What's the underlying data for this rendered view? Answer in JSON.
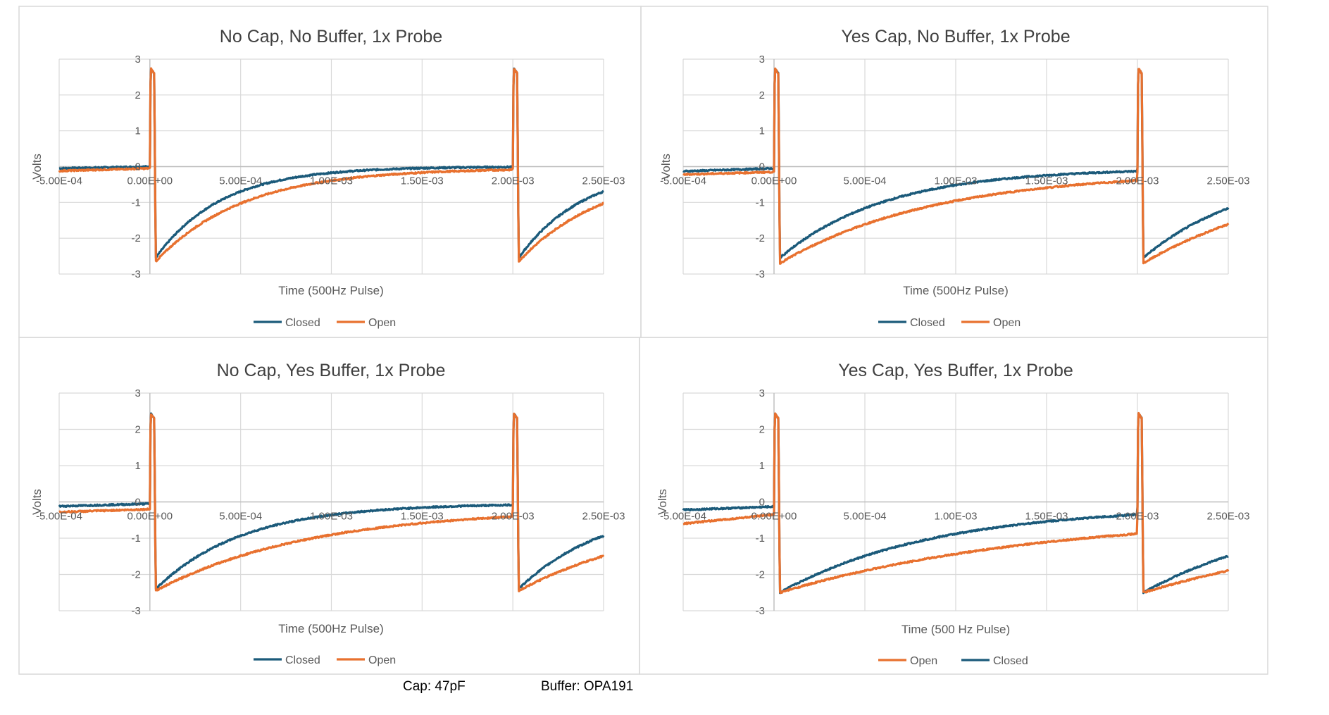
{
  "footnotes": {
    "cap": "Cap: 47pF",
    "buffer": "Buffer: OPA191"
  },
  "colors": {
    "closed": "#1B5A7A",
    "open": "#E8712F",
    "grid": "#D9D9D9",
    "text": "#595959",
    "title": "#404040",
    "border": "#D9D9D9"
  },
  "chart_data": [
    {
      "type": "line",
      "title": "No Cap, No Buffer, 1x Probe",
      "xlabel": "Time (500Hz Pulse)",
      "ylabel": "Volts",
      "xlim": [
        -0.0005,
        0.0025
      ],
      "ylim": [
        -3,
        3
      ],
      "xticks": [
        "-5.00E-04",
        "0.00E+00",
        "5.00E-04",
        "1.00E-03",
        "1.50E-03",
        "2.00E-03",
        "2.50E-03"
      ],
      "yticks": [
        "3",
        "2",
        "1",
        "0",
        "-1",
        "-2",
        "-3"
      ],
      "grid": true,
      "legend": "bottom",
      "legend_order": [
        "Closed",
        "Open"
      ],
      "series": [
        {
          "name": "Closed",
          "color": "#1B5A7A",
          "pre_low": -0.05,
          "pre_high": 0.0,
          "spike": 2.75,
          "neg_peak": -2.55,
          "tau": 0.00036
        },
        {
          "name": "Open",
          "color": "#E8712F",
          "pre_low": -0.12,
          "pre_high": -0.05,
          "spike": 2.75,
          "neg_peak": -2.65,
          "tau": 0.00048
        }
      ]
    },
    {
      "type": "line",
      "title": "Yes Cap, No Buffer, 1x Probe",
      "xlabel": "Time (500Hz Pulse)",
      "ylabel": "Volts",
      "xlim": [
        -0.0005,
        0.0025
      ],
      "ylim": [
        -3,
        3
      ],
      "xticks": [
        "-5.00E-04",
        "0.00E+00",
        "5.00E-04",
        "1.00E-03",
        "1.50E-03",
        "2.00E-03",
        "2.50E-03"
      ],
      "yticks": [
        "3",
        "2",
        "1",
        "0",
        "-1",
        "-2",
        "-3"
      ],
      "grid": true,
      "legend": "bottom",
      "legend_order": [
        "Closed",
        "Open"
      ],
      "series": [
        {
          "name": "Closed",
          "color": "#1B5A7A",
          "pre_low": -0.13,
          "pre_high": -0.05,
          "spike": 2.75,
          "neg_peak": -2.55,
          "tau": 0.00058
        },
        {
          "name": "Open",
          "color": "#E8712F",
          "pre_low": -0.22,
          "pre_high": -0.15,
          "spike": 2.75,
          "neg_peak": -2.7,
          "tau": 0.00085
        }
      ]
    },
    {
      "type": "line",
      "title": "No Cap, Yes Buffer, 1x Probe",
      "xlabel": "Time (500Hz Pulse)",
      "ylabel": "Volts",
      "xlim": [
        -0.0005,
        0.0025
      ],
      "ylim": [
        -3,
        3
      ],
      "xticks": [
        "-5.00E-04",
        "0.00E+00",
        "5.00E-04",
        "1.00E-03",
        "1.50E-03",
        "2.00E-03",
        "2.50E-03"
      ],
      "yticks": [
        "3",
        "2",
        "1",
        "0",
        "-1",
        "-2",
        "-3"
      ],
      "grid": true,
      "legend": "bottom",
      "legend_order": [
        "Closed",
        "Open"
      ],
      "series": [
        {
          "name": "Closed",
          "color": "#1B5A7A",
          "pre_low": -0.12,
          "pre_high": -0.05,
          "spike": 2.45,
          "neg_peak": -2.4,
          "tau": 0.00048
        },
        {
          "name": "Open",
          "color": "#E8712F",
          "pre_low": -0.28,
          "pre_high": -0.2,
          "spike": 2.45,
          "neg_peak": -2.45,
          "tau": 0.00085
        }
      ]
    },
    {
      "type": "line",
      "title": "Yes Cap, Yes Buffer, 1x Probe",
      "xlabel": "Time (500 Hz Pulse)",
      "ylabel": "Volts",
      "xlim": [
        -0.0005,
        0.0025
      ],
      "ylim": [
        -3,
        3
      ],
      "xticks": [
        "-5.00E-04",
        "0.00E+00",
        "5.00E-04",
        "1.00E-03",
        "1.50E-03",
        "2.00E-03",
        "2.50E-03"
      ],
      "yticks": [
        "3",
        "2",
        "1",
        "0",
        "-1",
        "-2",
        "-3"
      ],
      "grid": true,
      "legend": "bottom",
      "legend_order": [
        "Open",
        "Closed"
      ],
      "series": [
        {
          "name": "Closed",
          "color": "#1B5A7A",
          "pre_low": -0.22,
          "pre_high": -0.13,
          "spike": 2.45,
          "neg_peak": -2.5,
          "tau": 0.00085
        },
        {
          "name": "Open",
          "color": "#E8712F",
          "pre_low": -0.6,
          "pre_high": -0.35,
          "spike": 2.45,
          "neg_peak": -2.5,
          "tau": 0.00145
        }
      ]
    }
  ]
}
